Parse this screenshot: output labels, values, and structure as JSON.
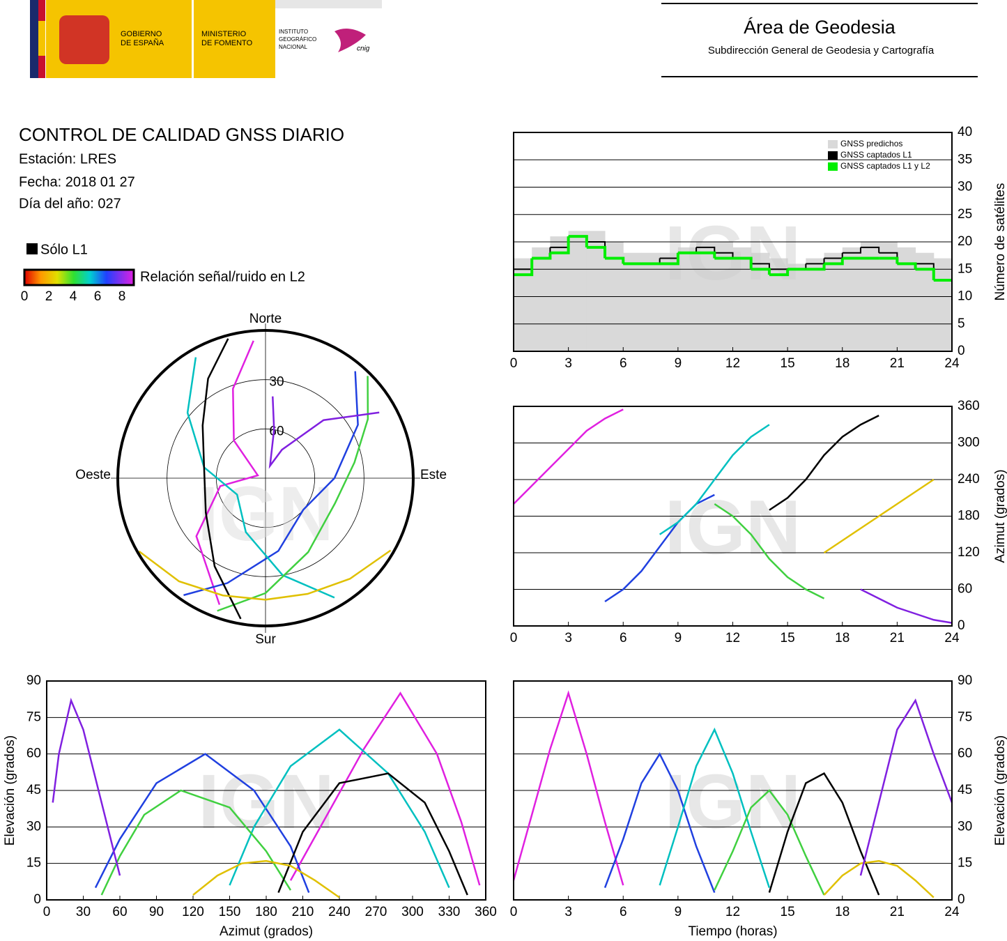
{
  "header": {
    "gov": [
      "GOBIERNO",
      "DE ESPAÑA"
    ],
    "ministry": [
      "MINISTERIO",
      "DE FOMENTO"
    ],
    "institute": [
      "INSTITUTO",
      "GEOGRÁFICO",
      "NACIONAL"
    ],
    "cnig": "cnig",
    "area_title": "Área de Geodesia",
    "area_subtitle": "Subdirección General de Geodesia y Cartografía"
  },
  "report": {
    "title": "CONTROL DE CALIDAD GNSS DIARIO",
    "station": "Estación: LRES",
    "date": "Fecha: 2018 01 27",
    "doy": "Día del año: 027",
    "l1_only": "Sólo L1",
    "snr_label": "Relación señal/ruido en L2",
    "snr_ticks": [
      0,
      2,
      4,
      6,
      8
    ]
  },
  "watermark": "IGN",
  "chart_data": [
    {
      "type": "polar",
      "direction_labels": {
        "north": "Norte",
        "east": "Este",
        "south": "Sur",
        "west": "Oeste"
      },
      "rlim": [
        90,
        0
      ],
      "rticks": [
        30,
        60
      ],
      "series": [
        {
          "color": "#e020e0",
          "x": [
            200,
            230,
            260,
            290,
            320,
            340,
            355
          ],
          "values": [
            8,
            35,
            62,
            85,
            60,
            32,
            6
          ]
        },
        {
          "color": "#2040e0",
          "x": [
            40,
            60,
            90,
            130,
            170,
            200,
            215
          ],
          "values": [
            5,
            25,
            48,
            60,
            45,
            22,
            3
          ]
        },
        {
          "color": "#00c0c0",
          "x": [
            150,
            170,
            200,
            240,
            280,
            310,
            330
          ],
          "values": [
            6,
            30,
            55,
            70,
            52,
            28,
            5
          ]
        },
        {
          "color": "#40d040",
          "x": [
            200,
            180,
            150,
            110,
            80,
            60,
            45
          ],
          "values": [
            4,
            20,
            38,
            45,
            35,
            18,
            2
          ]
        },
        {
          "color": "#000000",
          "x": [
            190,
            210,
            240,
            280,
            310,
            330,
            345
          ],
          "values": [
            3,
            28,
            48,
            52,
            40,
            20,
            2
          ]
        },
        {
          "color": "#e0c000",
          "x": [
            120,
            140,
            160,
            180,
            200,
            220,
            240
          ],
          "values": [
            2,
            10,
            15,
            16,
            14,
            8,
            1
          ]
        },
        {
          "color": "#8020e0",
          "x": [
            60,
            45,
            30,
            20,
            10,
            5
          ],
          "values": [
            10,
            40,
            70,
            82,
            60,
            40
          ]
        }
      ]
    },
    {
      "type": "step",
      "xlim": [
        0,
        24
      ],
      "xticks": [
        0,
        3,
        6,
        9,
        12,
        15,
        18,
        21,
        24
      ],
      "ylim": [
        0,
        40
      ],
      "yticks": [
        0,
        5,
        10,
        15,
        20,
        25,
        30,
        35,
        40
      ],
      "grid": "y",
      "yaxis_position": "right",
      "ylabel": "Número de satélites",
      "legend": "upper right",
      "x": [
        0,
        1,
        2,
        3,
        4,
        5,
        6,
        7,
        8,
        9,
        10,
        11,
        12,
        13,
        14,
        15,
        16,
        17,
        18,
        19,
        20,
        21,
        22,
        23
      ],
      "series": [
        {
          "name": "GNSS predichos",
          "color": "#d9d9d9",
          "style": "area",
          "values": [
            17,
            19,
            21,
            22,
            22,
            20,
            18,
            18,
            18,
            19,
            20,
            20,
            19,
            18,
            17,
            16,
            17,
            18,
            19,
            20,
            20,
            19,
            18,
            17
          ]
        },
        {
          "name": "GNSS captados L1",
          "color": "#000000",
          "style": "line",
          "values": [
            15,
            17,
            19,
            21,
            20,
            17,
            16,
            16,
            17,
            18,
            19,
            18,
            17,
            16,
            15,
            15,
            16,
            17,
            18,
            19,
            18,
            16,
            16,
            13
          ]
        },
        {
          "name": "GNSS captados L1 y L2",
          "color": "#00ee00",
          "style": "line",
          "values": [
            14,
            17,
            18,
            21,
            19,
            17,
            16,
            16,
            16,
            18,
            18,
            17,
            17,
            15,
            14,
            15,
            15,
            16,
            17,
            17,
            17,
            16,
            15,
            13
          ]
        }
      ]
    },
    {
      "type": "line",
      "xlim": [
        0,
        24
      ],
      "xticks": [
        0,
        3,
        6,
        9,
        12,
        15,
        18,
        21,
        24
      ],
      "ylim": [
        0,
        360
      ],
      "yticks": [
        0,
        60,
        120,
        180,
        240,
        300,
        360
      ],
      "grid": "y",
      "yaxis_position": "right",
      "ylabel": "Azimut (grados)",
      "series": [
        {
          "color": "#e020e0",
          "x": [
            0,
            1,
            2,
            3,
            4,
            5,
            6
          ],
          "values": [
            200,
            230,
            260,
            290,
            320,
            340,
            355
          ]
        },
        {
          "color": "#2040e0",
          "x": [
            5,
            6,
            7,
            8,
            9,
            10,
            11
          ],
          "values": [
            40,
            60,
            90,
            130,
            170,
            200,
            215
          ]
        },
        {
          "color": "#00c0c0",
          "x": [
            8,
            9,
            10,
            11,
            12,
            13,
            14
          ],
          "values": [
            150,
            170,
            200,
            240,
            280,
            310,
            330
          ]
        },
        {
          "color": "#40d040",
          "x": [
            11,
            12,
            13,
            14,
            15,
            16,
            17
          ],
          "values": [
            200,
            180,
            150,
            110,
            80,
            60,
            45
          ]
        },
        {
          "color": "#000000",
          "x": [
            14,
            15,
            16,
            17,
            18,
            19,
            20
          ],
          "values": [
            190,
            210,
            240,
            280,
            310,
            330,
            345
          ]
        },
        {
          "color": "#e0c000",
          "x": [
            17,
            18,
            19,
            20,
            21,
            22,
            23
          ],
          "values": [
            120,
            140,
            160,
            180,
            200,
            220,
            240
          ]
        },
        {
          "color": "#8020e0",
          "x": [
            19,
            20,
            21,
            22,
            23,
            24
          ],
          "values": [
            60,
            45,
            30,
            20,
            10,
            5
          ]
        }
      ]
    },
    {
      "type": "line",
      "xlim": [
        0,
        360
      ],
      "xticks": [
        0,
        30,
        60,
        90,
        120,
        150,
        180,
        210,
        240,
        270,
        300,
        330,
        360
      ],
      "ylim": [
        0,
        90
      ],
      "yticks": [
        0,
        15,
        30,
        45,
        60,
        75,
        90
      ],
      "grid": "y",
      "yaxis_position": "left",
      "xlabel": "Azimut (grados)",
      "ylabel": "Elevación (grados)",
      "series": [
        {
          "color": "#e020e0",
          "x": [
            200,
            230,
            260,
            290,
            320,
            340,
            355
          ],
          "values": [
            8,
            35,
            62,
            85,
            60,
            32,
            6
          ]
        },
        {
          "color": "#2040e0",
          "x": [
            40,
            60,
            90,
            130,
            170,
            200,
            215
          ],
          "values": [
            5,
            25,
            48,
            60,
            45,
            22,
            3
          ]
        },
        {
          "color": "#00c0c0",
          "x": [
            150,
            170,
            200,
            240,
            280,
            310,
            330
          ],
          "values": [
            6,
            30,
            55,
            70,
            52,
            28,
            5
          ]
        },
        {
          "color": "#40d040",
          "x": [
            200,
            180,
            150,
            110,
            80,
            60,
            45
          ],
          "values": [
            4,
            20,
            38,
            45,
            35,
            18,
            2
          ]
        },
        {
          "color": "#000000",
          "x": [
            190,
            210,
            240,
            280,
            310,
            330,
            345
          ],
          "values": [
            3,
            28,
            48,
            52,
            40,
            20,
            2
          ]
        },
        {
          "color": "#e0c000",
          "x": [
            120,
            140,
            160,
            180,
            200,
            220,
            240
          ],
          "values": [
            2,
            10,
            15,
            16,
            14,
            8,
            1
          ]
        },
        {
          "color": "#8020e0",
          "x": [
            60,
            45,
            30,
            20,
            10,
            5
          ],
          "values": [
            10,
            40,
            70,
            82,
            60,
            40
          ]
        }
      ]
    },
    {
      "type": "line",
      "xlim": [
        0,
        24
      ],
      "xticks": [
        0,
        3,
        6,
        9,
        12,
        15,
        18,
        21,
        24
      ],
      "ylim": [
        0,
        90
      ],
      "yticks": [
        0,
        15,
        30,
        45,
        60,
        75,
        90
      ],
      "grid": "y",
      "yaxis_position": "right",
      "xlabel": "Tiempo (horas)",
      "ylabel": "Elevación (grados)",
      "series": [
        {
          "color": "#e020e0",
          "x": [
            0,
            1,
            2,
            3,
            4,
            5,
            6
          ],
          "values": [
            8,
            35,
            62,
            85,
            60,
            32,
            6
          ]
        },
        {
          "color": "#2040e0",
          "x": [
            5,
            6,
            7,
            8,
            9,
            10,
            11
          ],
          "values": [
            5,
            25,
            48,
            60,
            45,
            22,
            3
          ]
        },
        {
          "color": "#00c0c0",
          "x": [
            8,
            9,
            10,
            11,
            12,
            13,
            14
          ],
          "values": [
            6,
            30,
            55,
            70,
            52,
            28,
            5
          ]
        },
        {
          "color": "#40d040",
          "x": [
            11,
            12,
            13,
            14,
            15,
            16,
            17
          ],
          "values": [
            4,
            20,
            38,
            45,
            35,
            18,
            2
          ]
        },
        {
          "color": "#000000",
          "x": [
            14,
            15,
            16,
            17,
            18,
            19,
            20
          ],
          "values": [
            3,
            28,
            48,
            52,
            40,
            20,
            2
          ]
        },
        {
          "color": "#e0c000",
          "x": [
            17,
            18,
            19,
            20,
            21,
            22,
            23
          ],
          "values": [
            2,
            10,
            15,
            16,
            14,
            8,
            1
          ]
        },
        {
          "color": "#8020e0",
          "x": [
            19,
            20,
            21,
            22,
            23,
            24
          ],
          "values": [
            10,
            40,
            70,
            82,
            60,
            40
          ]
        }
      ]
    }
  ]
}
